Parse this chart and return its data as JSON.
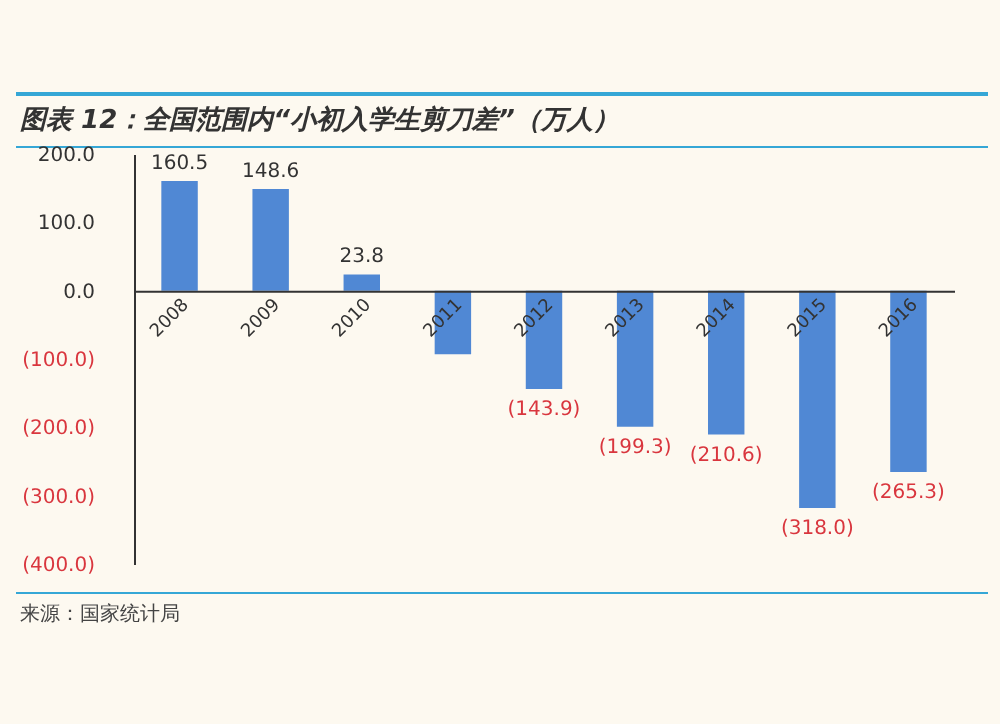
{
  "chart_data": {
    "type": "bar",
    "title": "图表 12：全国范围内“小初入学生剪刀差”（万人）",
    "categories": [
      "2008",
      "2009",
      "2010",
      "2011",
      "2012",
      "2013",
      "2014",
      "2015",
      "2016"
    ],
    "values": [
      160.5,
      148.6,
      23.8,
      -93,
      -143.9,
      -199.3,
      -210.6,
      -318.0,
      -265.3
    ],
    "value_labels": [
      "160.5",
      "148.6",
      "23.8",
      null,
      "(143.9)",
      "(199.3)",
      "(210.6)",
      "(318.0)",
      "(265.3)"
    ],
    "color": "#5088d4",
    "ylim": [
      -400,
      200
    ],
    "yticks": [
      {
        "value": -400,
        "label": "(400.0)"
      },
      {
        "value": -300,
        "label": "(300.0)"
      },
      {
        "value": -200,
        "label": "(200.0)"
      },
      {
        "value": -100,
        "label": "(100.0)"
      },
      {
        "value": 0,
        "label": "0.0"
      },
      {
        "value": 100,
        "label": "100.0"
      },
      {
        "value": 200,
        "label": "200.0"
      }
    ],
    "grid": false,
    "annotations": [
      "来源：国家统计局"
    ]
  }
}
